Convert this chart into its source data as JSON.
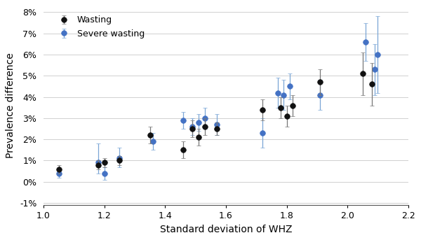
{
  "wasting_x": [
    1.05,
    1.18,
    1.2,
    1.25,
    1.35,
    1.46,
    1.49,
    1.51,
    1.53,
    1.57,
    1.72,
    1.78,
    1.8,
    1.82,
    1.91,
    2.05,
    2.08
  ],
  "wasting_y": [
    0.006,
    0.008,
    0.009,
    0.01,
    0.022,
    0.015,
    0.025,
    0.021,
    0.026,
    0.025,
    0.034,
    0.035,
    0.031,
    0.036,
    0.047,
    0.051,
    0.046
  ],
  "wasting_yerr_lo": [
    0.002,
    0.002,
    0.002,
    0.002,
    0.004,
    0.004,
    0.004,
    0.004,
    0.004,
    0.003,
    0.005,
    0.005,
    0.005,
    0.005,
    0.006,
    0.01,
    0.01
  ],
  "wasting_yerr_hi": [
    0.002,
    0.002,
    0.002,
    0.002,
    0.004,
    0.004,
    0.004,
    0.004,
    0.004,
    0.003,
    0.005,
    0.005,
    0.005,
    0.005,
    0.006,
    0.01,
    0.01
  ],
  "severe_x": [
    1.05,
    1.18,
    1.2,
    1.25,
    1.36,
    1.46,
    1.49,
    1.51,
    1.53,
    1.57,
    1.72,
    1.77,
    1.79,
    1.81,
    1.91,
    2.06,
    2.09,
    2.1
  ],
  "severe_y": [
    0.004,
    0.009,
    0.004,
    0.011,
    0.019,
    0.029,
    0.026,
    0.028,
    0.03,
    0.027,
    0.023,
    0.042,
    0.041,
    0.045,
    0.041,
    0.066,
    0.053,
    0.06
  ],
  "severe_yerr_lo": [
    0.002,
    0.005,
    0.003,
    0.004,
    0.004,
    0.004,
    0.004,
    0.004,
    0.005,
    0.005,
    0.007,
    0.007,
    0.007,
    0.006,
    0.007,
    0.009,
    0.012,
    0.018
  ],
  "severe_yerr_hi": [
    0.002,
    0.009,
    0.003,
    0.005,
    0.004,
    0.004,
    0.004,
    0.004,
    0.005,
    0.005,
    0.007,
    0.007,
    0.007,
    0.006,
    0.007,
    0.009,
    0.012,
    0.018
  ],
  "wasting_color": "#111111",
  "severe_color": "#4472C4",
  "ecolor_wasting": "#777777",
  "ecolor_severe": "#7aa6d6",
  "xlabel": "Standard deviation of WHZ",
  "ylabel": "Prevalence difference",
  "xlim": [
    1.0,
    2.2
  ],
  "ylim": [
    -0.011,
    0.083
  ],
  "yticks": [
    -0.01,
    0.0,
    0.01,
    0.02,
    0.03,
    0.04,
    0.05,
    0.06,
    0.07,
    0.08
  ],
  "xticks": [
    1.0,
    1.2,
    1.4,
    1.6,
    1.8,
    2.0,
    2.2
  ],
  "figsize": [
    6.0,
    3.43
  ],
  "dpi": 100
}
